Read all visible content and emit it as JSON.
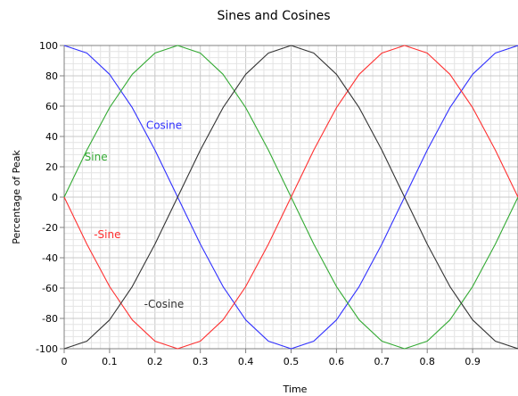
{
  "chart_data": {
    "type": "line",
    "title": "Sines and Cosines",
    "xlabel": "Time",
    "ylabel": "Percentage of Peak",
    "xlim": [
      0,
      1
    ],
    "ylim": [
      -100,
      100
    ],
    "x_ticks": [
      "0",
      "0.1",
      "0.2",
      "0.3",
      "0.4",
      "0.5",
      "0.6",
      "0.7",
      "0.8",
      "0.9"
    ],
    "y_ticks": [
      "100",
      "80",
      "60",
      "40",
      "20",
      "0",
      "-20",
      "-40",
      "-60",
      "-80",
      "-100"
    ],
    "grid": true,
    "x": [
      0,
      0.05,
      0.1,
      0.15,
      0.2,
      0.25,
      0.3,
      0.35,
      0.4,
      0.45,
      0.5,
      0.55,
      0.6,
      0.65,
      0.7,
      0.75,
      0.8,
      0.85,
      0.9,
      0.95,
      1.0
    ],
    "series": [
      {
        "name": "Cosine",
        "color": "#3030ff",
        "values": [
          100,
          95,
          81,
          59,
          31,
          0,
          -31,
          -59,
          -81,
          -95,
          -100,
          -95,
          -81,
          -59,
          -31,
          0,
          31,
          59,
          81,
          95,
          100
        ]
      },
      {
        "name": "Sine",
        "color": "#33aa33",
        "values": [
          0,
          31,
          59,
          81,
          95,
          100,
          95,
          81,
          59,
          31,
          0,
          -31,
          -59,
          -81,
          -95,
          -100,
          -95,
          -81,
          -59,
          -31,
          0
        ]
      },
      {
        "name": "-Sine",
        "color": "#ff3030",
        "values": [
          0,
          -31,
          -59,
          -81,
          -95,
          -100,
          -95,
          -81,
          -59,
          -31,
          0,
          31,
          59,
          81,
          95,
          100,
          95,
          81,
          59,
          31,
          0
        ]
      },
      {
        "name": "-Cosine",
        "color": "#333333",
        "values": [
          -100,
          -95,
          -81,
          -59,
          -31,
          0,
          31,
          59,
          81,
          95,
          100,
          95,
          81,
          59,
          31,
          0,
          -31,
          -59,
          -81,
          -95,
          -100
        ]
      }
    ],
    "annotations": [
      {
        "text": "Cosine",
        "series": "Cosine",
        "x": 0.22,
        "y": 45
      },
      {
        "text": "Sine",
        "series": "Sine",
        "x": 0.07,
        "y": 24
      },
      {
        "text": "-Sine",
        "series": "-Sine",
        "x": 0.095,
        "y": -27
      },
      {
        "text": "-Cosine",
        "series": "-Cosine",
        "x": 0.22,
        "y": -73
      }
    ]
  }
}
